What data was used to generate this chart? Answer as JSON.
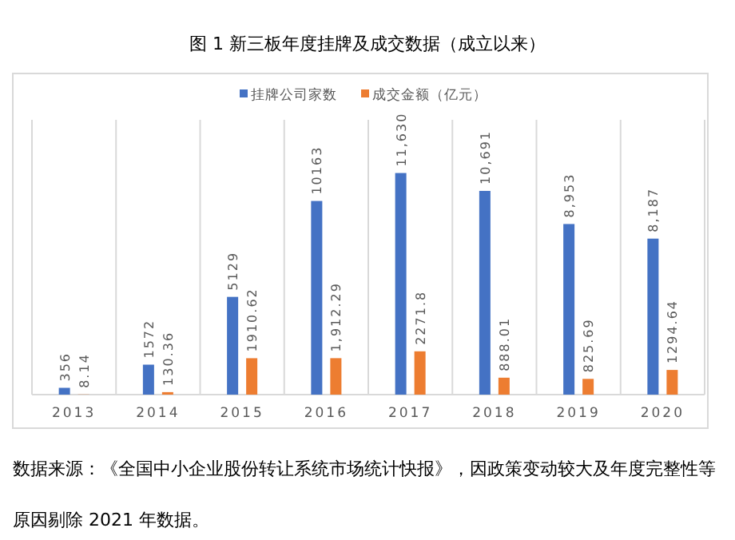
{
  "chart_data": {
    "type": "bar",
    "title": "图 1 新三板年度挂牌及成交数据（成立以来）",
    "categories": [
      "2013",
      "2014",
      "2015",
      "2016",
      "2017",
      "2018",
      "2019",
      "2020"
    ],
    "series": [
      {
        "name": "挂牌公司家数",
        "color": "#4472c4",
        "values": [
          356,
          1572,
          5129,
          10163,
          11630,
          10691,
          8953,
          8187
        ],
        "value_labels": [
          "356",
          "1572",
          "5129",
          "10163",
          "11,630",
          "10,691",
          "8,953",
          "8,187"
        ]
      },
      {
        "name": "成交金额（亿元）",
        "color": "#ed7d31",
        "values": [
          8.14,
          130.36,
          1910.62,
          1912.29,
          2271.8,
          888.01,
          825.69,
          1294.64
        ],
        "value_labels": [
          "8.14",
          "130.36",
          "1910.62",
          "1,912.29",
          "2271.8",
          "888.01",
          "825.69",
          "1294.64"
        ]
      }
    ],
    "grid": "x",
    "legend": "top",
    "annotations": [
      "数据来源：《全国中小企业股份转让系统市场统计快报》，因政策变动较大及年度完整性等原因剔除 2021 年数据。"
    ]
  }
}
